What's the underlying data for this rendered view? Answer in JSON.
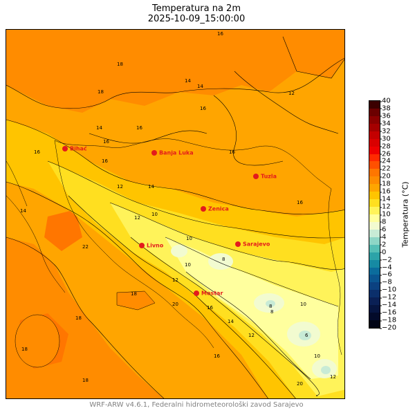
{
  "title": {
    "line1": "Temperatura na 2m",
    "line2": "2025-10-09_15:00:00"
  },
  "footer": "WRF-ARW v4.6.1, Federalni hidrometeorološki zavod Sarajevo",
  "colorbar": {
    "label": "Temperatura (°C)",
    "ticks": [
      "40",
      "38",
      "36",
      "34",
      "32",
      "30",
      "28",
      "26",
      "24",
      "22",
      "20",
      "18",
      "16",
      "14",
      "12",
      "10",
      "8",
      "6",
      "4",
      "2",
      "0",
      "−2",
      "−4",
      "−6",
      "−8",
      "−10",
      "−12",
      "−14",
      "−16",
      "−18",
      "−20"
    ],
    "colors": [
      "#3b0000",
      "#6b0000",
      "#8b0000",
      "#a50000",
      "#c40000",
      "#d90000",
      "#ee0000",
      "#ff2a00",
      "#ff5000",
      "#ff7600",
      "#ff8c00",
      "#ffa500",
      "#ffc400",
      "#ffdf20",
      "#fff35a",
      "#ffff9e",
      "#f2fbd0",
      "#c8ebd6",
      "#8ed6c6",
      "#55bfb5",
      "#2ca3a8",
      "#168aa3",
      "#0b6c9c",
      "#0a5590",
      "#0b4180",
      "#0b2f6b",
      "#0a2055",
      "#061540",
      "#030b2a",
      "#010415"
    ]
  },
  "cities": [
    {
      "name": "Bihać"
    },
    {
      "name": "Banja Luka"
    },
    {
      "name": "Tuzla"
    },
    {
      "name": "Zenica"
    },
    {
      "name": "Sarajevo"
    },
    {
      "name": "Livno"
    },
    {
      "name": "Mostar"
    }
  ],
  "contour_labels": [
    "16",
    "16",
    "16",
    "16",
    "18",
    "14",
    "14",
    "16",
    "18",
    "14",
    "16",
    "12",
    "12",
    "10",
    "10",
    "8",
    "8",
    "10",
    "12",
    "14",
    "16",
    "18",
    "20",
    "18",
    "18",
    "20",
    "22",
    "16",
    "14",
    "12",
    "10",
    "8",
    "6",
    "10",
    "12",
    "16",
    "18",
    "16",
    "14",
    "12"
  ],
  "colors": {
    "warm_18": "#ffa500",
    "warm_20": "#ff8c00",
    "warm_22": "#ff7600",
    "mid_16": "#ffc400",
    "mid_14": "#ffdf20",
    "cool_12": "#fff35a",
    "cool_10": "#ffff9e",
    "cool_8": "#f2fbd0",
    "cool_6": "#c8ebd6",
    "city_marker": "#e31a1c"
  }
}
